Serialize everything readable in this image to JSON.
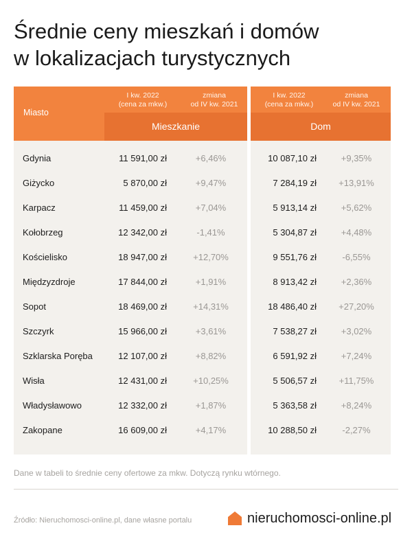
{
  "title_lines": [
    "Średnie ceny mieszkań i domów",
    "w lokalizacjach turystycznych"
  ],
  "chart_data": {
    "type": "table",
    "columns": {
      "city": "Miasto",
      "price_line1": "I kw. 2022",
      "price_line2": "(cena za mkw.)",
      "change_line1": "zmiana",
      "change_line2": "od IV kw. 2021",
      "group_flats": "Mieszkanie",
      "group_houses": "Dom"
    },
    "rows": [
      {
        "city": "Gdynia",
        "flat_price": "11 591,00 zł",
        "flat_change": "+6,46%",
        "house_price": "10 087,10 zł",
        "house_change": "+9,35%"
      },
      {
        "city": "Giżycko",
        "flat_price": "5 870,00 zł",
        "flat_change": "+9,47%",
        "house_price": "7 284,19 zł",
        "house_change": "+13,91%"
      },
      {
        "city": "Karpacz",
        "flat_price": "11 459,00 zł",
        "flat_change": "+7,04%",
        "house_price": "5 913,14 zł",
        "house_change": "+5,62%"
      },
      {
        "city": "Kołobrzeg",
        "flat_price": "12 342,00 zł",
        "flat_change": "-1,41%",
        "house_price": "5 304,87 zł",
        "house_change": "+4,48%"
      },
      {
        "city": "Kościelisko",
        "flat_price": "18 947,00 zł",
        "flat_change": "+12,70%",
        "house_price": "9 551,76 zł",
        "house_change": "-6,55%"
      },
      {
        "city": "Międzyzdroje",
        "flat_price": "17 844,00 zł",
        "flat_change": "+1,91%",
        "house_price": "8 913,42 zł",
        "house_change": "+2,36%"
      },
      {
        "city": "Sopot",
        "flat_price": "18 469,00 zł",
        "flat_change": "+14,31%",
        "house_price": "18 486,40 zł",
        "house_change": "+27,20%"
      },
      {
        "city": "Szczyrk",
        "flat_price": "15 966,00 zł",
        "flat_change": "+3,61%",
        "house_price": "7 538,27 zł",
        "house_change": "+3,02%"
      },
      {
        "city": "Szklarska Poręba",
        "flat_price": "12 107,00 zł",
        "flat_change": "+8,82%",
        "house_price": "6 591,92 zł",
        "house_change": "+7,24%"
      },
      {
        "city": "Wisła",
        "flat_price": "12 431,00 zł",
        "flat_change": "+10,25%",
        "house_price": "5 506,57 zł",
        "house_change": "+11,75%"
      },
      {
        "city": "Władysławowo",
        "flat_price": "12 332,00 zł",
        "flat_change": "+1,87%",
        "house_price": "5 363,58 zł",
        "house_change": "+8,24%"
      },
      {
        "city": "Zakopane",
        "flat_price": "16 609,00 zł",
        "flat_change": "+4,17%",
        "house_price": "10 288,50 zł",
        "house_change": "-2,27%"
      }
    ]
  },
  "note": "Dane w tabeli to średnie ceny ofertowe za mkw. Dotyczą rynku wtórnego.",
  "source": "Źródło: Nieruchomosci-online.pl, dane własne portalu",
  "brand": {
    "name": "nieruchomosci-online.pl",
    "color": "#ef7a36",
    "icon": "house-icon"
  },
  "colors": {
    "header": "#f2833e",
    "subheader": "#e77231",
    "panel": "#f3f1ed"
  }
}
